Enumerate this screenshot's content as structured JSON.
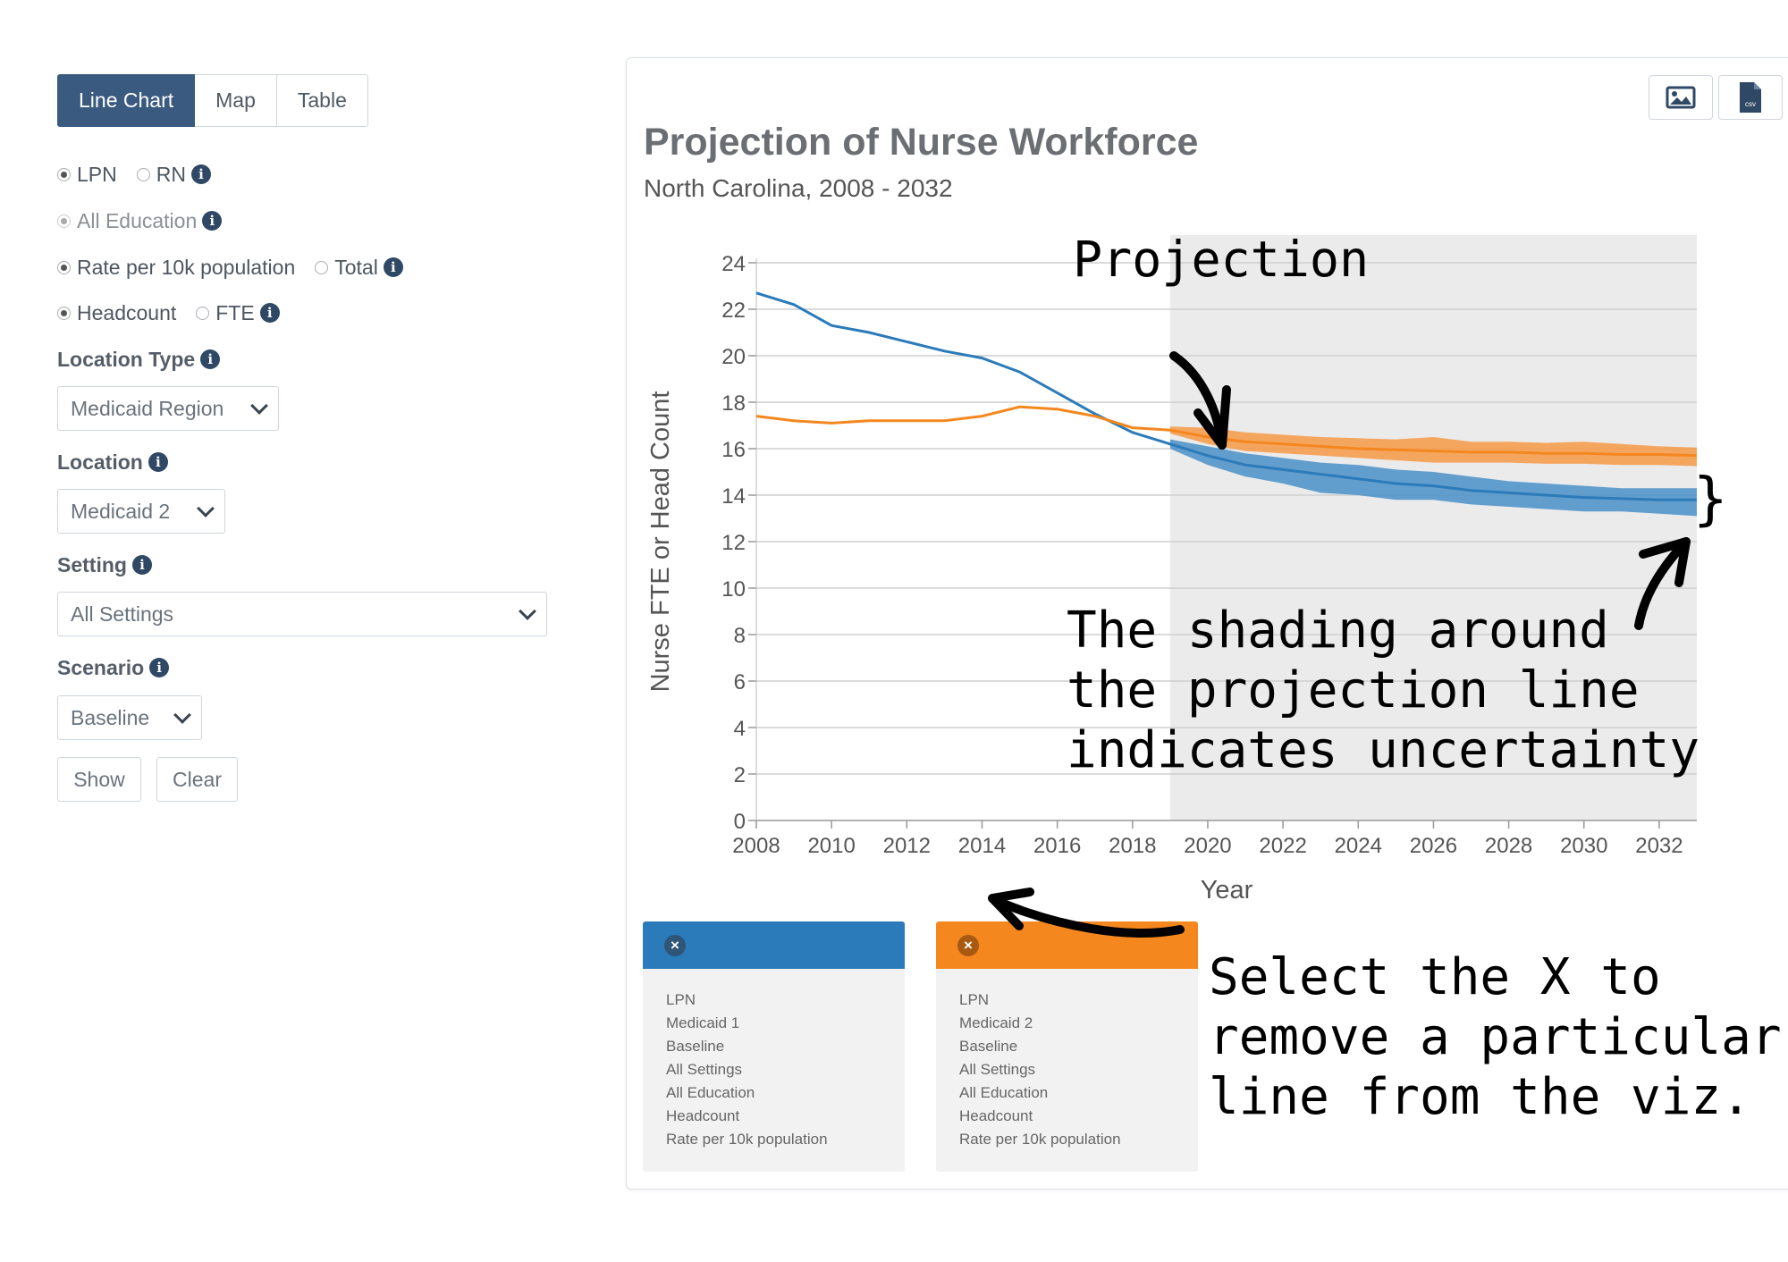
{
  "tabs": [
    "Line Chart",
    "Map",
    "Table"
  ],
  "nurse_type": {
    "options": [
      "LPN",
      "RN"
    ],
    "selected": "LPN"
  },
  "education": {
    "label": "All Education"
  },
  "measure": {
    "options": [
      "Rate per 10k population",
      "Total"
    ],
    "selected": "Rate per 10k population"
  },
  "count_type": {
    "options": [
      "Headcount",
      "FTE"
    ],
    "selected": "Headcount"
  },
  "filters": {
    "location_type": {
      "label": "Location Type",
      "value": "Medicaid Region"
    },
    "location": {
      "label": "Location",
      "value": "Medicaid 2"
    },
    "setting": {
      "label": "Setting",
      "value": "All Settings"
    },
    "scenario": {
      "label": "Scenario",
      "value": "Baseline"
    }
  },
  "buttons": {
    "show": "Show",
    "clear": "Clear"
  },
  "panel": {
    "image_icon": "image-icon",
    "csv_icon": "csv-file-icon",
    "csv_text": "csv"
  },
  "chart_data": {
    "type": "line",
    "title": "Projection of Nurse Workforce",
    "subtitle": "North Carolina, 2008 - 2032",
    "xlabel": "Year",
    "ylabel": "Nurse FTE or Head Count",
    "xlim": [
      2008,
      2033
    ],
    "ylim": [
      0,
      24
    ],
    "x_ticks": [
      2008,
      2010,
      2012,
      2014,
      2016,
      2018,
      2020,
      2022,
      2024,
      2026,
      2028,
      2030,
      2032
    ],
    "y_ticks": [
      0,
      2,
      4,
      6,
      8,
      10,
      12,
      14,
      16,
      18,
      20,
      22,
      24
    ],
    "grid": "horizontal",
    "projection_start": 2019,
    "series": [
      {
        "color": "#2b7bba",
        "band_color": "#4a90c8",
        "points": [
          [
            2008,
            22.7
          ],
          [
            2009,
            22.2
          ],
          [
            2010,
            21.3
          ],
          [
            2011,
            21.0
          ],
          [
            2012,
            20.6
          ],
          [
            2013,
            20.2
          ],
          [
            2014,
            19.9
          ],
          [
            2015,
            19.3
          ],
          [
            2016,
            18.4
          ],
          [
            2017,
            17.5
          ],
          [
            2018,
            16.7
          ],
          [
            2019,
            16.2
          ],
          [
            2020,
            15.7
          ],
          [
            2021,
            15.3
          ],
          [
            2022,
            15.1
          ],
          [
            2023,
            14.9
          ],
          [
            2024,
            14.7
          ],
          [
            2025,
            14.5
          ],
          [
            2026,
            14.4
          ],
          [
            2027,
            14.2
          ],
          [
            2028,
            14.1
          ],
          [
            2029,
            14.0
          ],
          [
            2030,
            13.9
          ],
          [
            2031,
            13.85
          ],
          [
            2032,
            13.8
          ],
          [
            2033,
            13.8
          ]
        ],
        "band_upper": [
          [
            2019,
            16.4
          ],
          [
            2020,
            16.1
          ],
          [
            2021,
            15.8
          ],
          [
            2022,
            15.6
          ],
          [
            2023,
            15.4
          ],
          [
            2024,
            15.3
          ],
          [
            2025,
            15.1
          ],
          [
            2026,
            15.0
          ],
          [
            2027,
            14.8
          ],
          [
            2028,
            14.6
          ],
          [
            2029,
            14.5
          ],
          [
            2030,
            14.4
          ],
          [
            2031,
            14.3
          ],
          [
            2032,
            14.3
          ],
          [
            2033,
            14.3
          ]
        ],
        "band_lower": [
          [
            2019,
            16.0
          ],
          [
            2020,
            15.3
          ],
          [
            2021,
            14.8
          ],
          [
            2022,
            14.5
          ],
          [
            2023,
            14.1
          ],
          [
            2024,
            14.0
          ],
          [
            2025,
            13.8
          ],
          [
            2026,
            13.8
          ],
          [
            2027,
            13.6
          ],
          [
            2028,
            13.5
          ],
          [
            2029,
            13.4
          ],
          [
            2030,
            13.3
          ],
          [
            2031,
            13.3
          ],
          [
            2032,
            13.2
          ],
          [
            2033,
            13.1
          ]
        ]
      },
      {
        "color": "#f5871f",
        "band_color": "#f79a45",
        "points": [
          [
            2008,
            17.4
          ],
          [
            2009,
            17.2
          ],
          [
            2010,
            17.1
          ],
          [
            2011,
            17.2
          ],
          [
            2012,
            17.2
          ],
          [
            2013,
            17.2
          ],
          [
            2014,
            17.4
          ],
          [
            2015,
            17.8
          ],
          [
            2016,
            17.7
          ],
          [
            2017,
            17.4
          ],
          [
            2018,
            16.9
          ],
          [
            2019,
            16.8
          ],
          [
            2020,
            16.5
          ],
          [
            2021,
            16.3
          ],
          [
            2022,
            16.2
          ],
          [
            2023,
            16.1
          ],
          [
            2024,
            16.0
          ],
          [
            2025,
            15.95
          ],
          [
            2026,
            15.9
          ],
          [
            2027,
            15.85
          ],
          [
            2028,
            15.85
          ],
          [
            2029,
            15.8
          ],
          [
            2030,
            15.8
          ],
          [
            2031,
            15.75
          ],
          [
            2032,
            15.75
          ],
          [
            2033,
            15.7
          ]
        ],
        "band_upper": [
          [
            2019,
            16.95
          ],
          [
            2020,
            16.9
          ],
          [
            2021,
            16.7
          ],
          [
            2022,
            16.6
          ],
          [
            2023,
            16.5
          ],
          [
            2024,
            16.45
          ],
          [
            2025,
            16.4
          ],
          [
            2026,
            16.5
          ],
          [
            2027,
            16.3
          ],
          [
            2028,
            16.3
          ],
          [
            2029,
            16.25
          ],
          [
            2030,
            16.3
          ],
          [
            2031,
            16.2
          ],
          [
            2032,
            16.1
          ],
          [
            2033,
            16.05
          ]
        ],
        "band_lower": [
          [
            2019,
            16.65
          ],
          [
            2020,
            16.2
          ],
          [
            2021,
            15.9
          ],
          [
            2022,
            15.8
          ],
          [
            2023,
            15.7
          ],
          [
            2024,
            15.6
          ],
          [
            2025,
            15.5
          ],
          [
            2026,
            15.4
          ],
          [
            2027,
            15.4
          ],
          [
            2028,
            15.4
          ],
          [
            2029,
            15.35
          ],
          [
            2030,
            15.35
          ],
          [
            2031,
            15.3
          ],
          [
            2032,
            15.3
          ],
          [
            2033,
            15.25
          ]
        ]
      }
    ]
  },
  "legend": [
    {
      "color": "#2b7bba",
      "x_color": "#2f5577",
      "lines": [
        "LPN",
        "Medicaid 1",
        "Baseline",
        "All Settings",
        "All Education",
        "Headcount",
        "Rate per 10k population"
      ]
    },
    {
      "color": "#f5871f",
      "x_color": "#a85a10",
      "lines": [
        "LPN",
        "Medicaid 2",
        "Baseline",
        "All Settings",
        "All Education",
        "Headcount",
        "Rate per 10k population"
      ]
    }
  ],
  "annotations": {
    "projection": "Projection",
    "uncertainty": [
      "The shading around",
      "the projection line",
      "indicates uncertainty"
    ],
    "remove": [
      "Select the X to",
      "remove a particular",
      "line from the viz."
    ],
    "brace": "}"
  }
}
